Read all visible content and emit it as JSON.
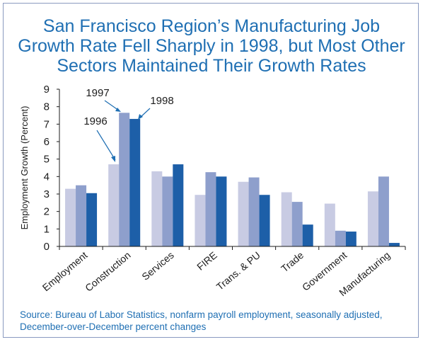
{
  "chart_data": {
    "type": "bar",
    "title": [
      "San Francisco Region’s Manufacturing Job",
      "Growth Rate Fell Sharply in 1998, but Most Other",
      "Sectors Maintained Their Growth Rates"
    ],
    "ylabel": "Employment Growth (Percent)",
    "xlabel": "",
    "ylim": [
      0,
      9
    ],
    "yticks": [
      "0",
      "1",
      "2",
      "3",
      "4",
      "5",
      "6",
      "7",
      "8",
      "9"
    ],
    "grid": false,
    "categories": [
      "Employment",
      "Construction",
      "Services",
      "FIRE",
      "Trans. & PU",
      "Trade",
      "Government",
      "Manufacturing"
    ],
    "series": [
      {
        "name": "1996",
        "color": "#c8cbe3",
        "values": [
          3.3,
          4.7,
          4.3,
          2.95,
          3.7,
          3.1,
          2.45,
          3.15
        ]
      },
      {
        "name": "1997",
        "color": "#8e9fcc",
        "values": [
          3.5,
          7.65,
          4.0,
          4.25,
          3.95,
          2.55,
          0.9,
          4.0
        ]
      },
      {
        "name": "1998",
        "color": "#1d5fa8",
        "values": [
          3.05,
          7.3,
          4.7,
          4.0,
          2.95,
          1.25,
          0.85,
          0.2
        ]
      }
    ],
    "annotations": [
      "1996",
      "1997",
      "1998"
    ],
    "source": "Source: Bureau of Labor Statistics, nonfarm payroll employment, seasonally adjusted, December-over-December percent changes"
  }
}
